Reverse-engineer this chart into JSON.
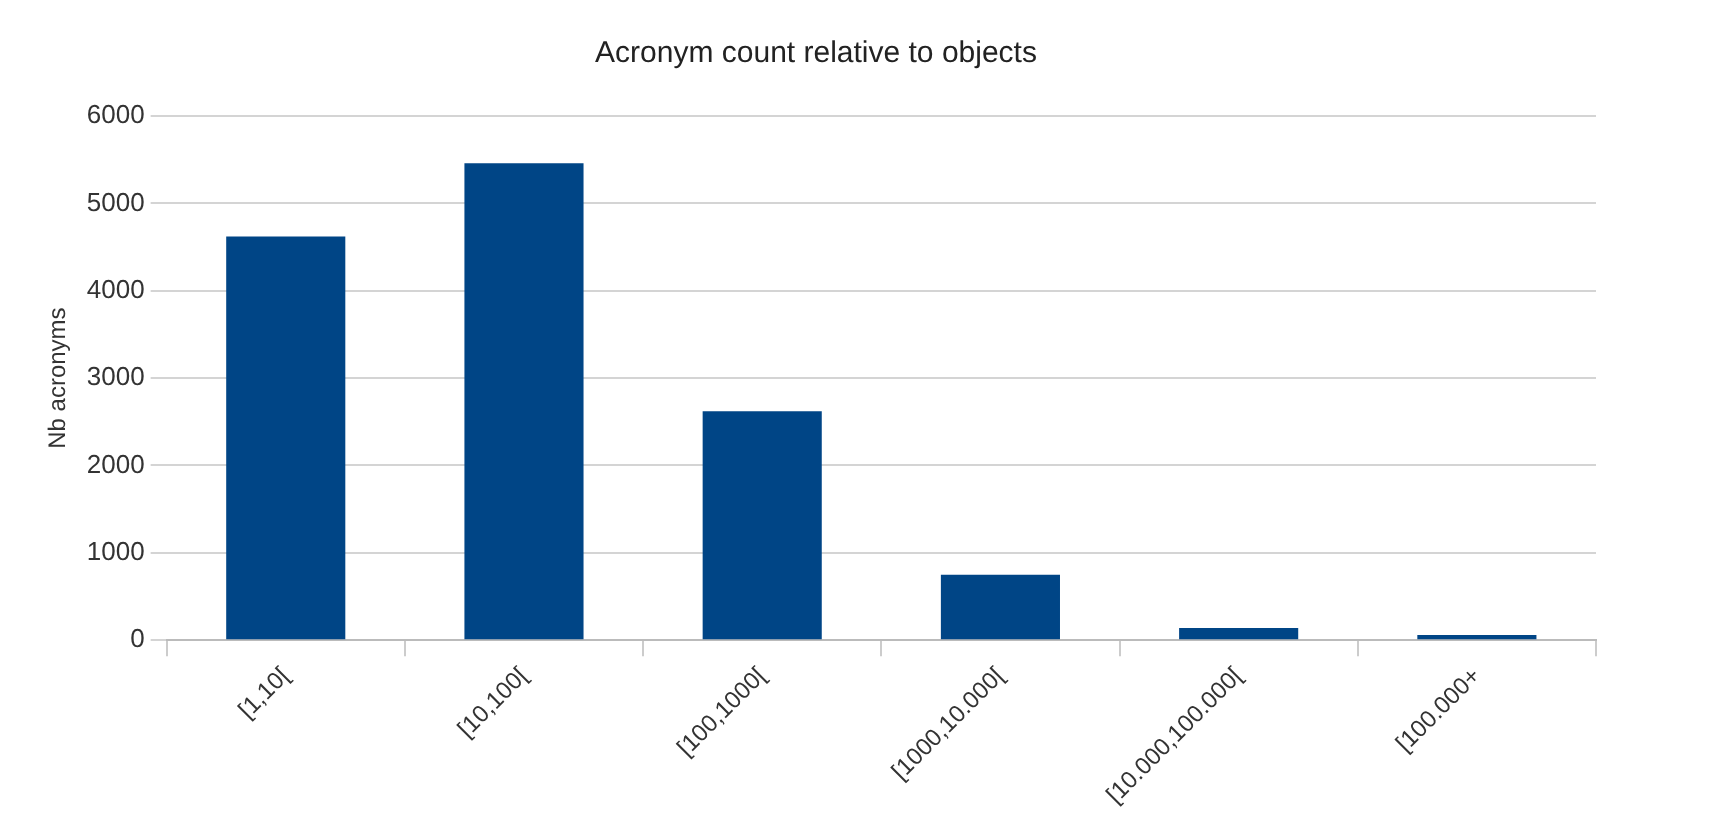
{
  "chart_data": {
    "type": "bar",
    "title": "Acronym count relative to objects",
    "ylabel": "Nb acronyms",
    "categories": [
      "[1,10[",
      "[10,100[",
      "[100,1000[",
      "[1000,10.000[",
      "[10.000,100.000[",
      "[100.000+"
    ],
    "values": [
      4620,
      5460,
      2620,
      750,
      140,
      60
    ],
    "color": "#004586",
    "ylim": [
      0,
      6000
    ],
    "yticks": [
      0,
      1000,
      2000,
      3000,
      4000,
      5000,
      6000
    ],
    "grid": "y",
    "legend": false
  }
}
